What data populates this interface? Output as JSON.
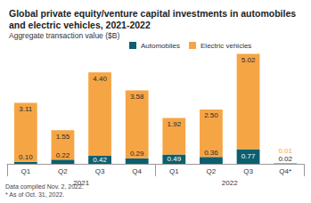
{
  "chart_data": {
    "type": "bar",
    "title": "Global private equity/venture capital investments in automobiles and electric vehicles, 2021-2022",
    "subtitle": "Aggregate transaction value ($B)",
    "categories": [
      "Q1",
      "Q2",
      "Q3",
      "Q4",
      "Q1",
      "Q2",
      "Q3",
      "Q4*"
    ],
    "category_groups": [
      "2021",
      "2022"
    ],
    "series": [
      {
        "name": "Automobiles",
        "color": "#0b5f6e",
        "values": [
          0.1,
          0.22,
          0.42,
          0.29,
          0.49,
          0.36,
          0.77,
          0.02
        ],
        "value_labels": [
          "0.10",
          "0.22",
          "0.42",
          "0.29",
          "0.49",
          "0.36",
          "0.77",
          "0.02"
        ]
      },
      {
        "name": "Electric vehicles",
        "color": "#f6a545",
        "values": [
          3.11,
          1.55,
          4.4,
          3.58,
          1.92,
          2.5,
          5.02,
          0.01
        ],
        "value_labels": [
          "3.11",
          "1.55",
          "4.40",
          "3.58",
          "1.92",
          "2.50",
          "5.02",
          "0.01"
        ]
      }
    ],
    "ylim": [
      0,
      6
    ],
    "yticks": [
      0,
      6
    ],
    "stacked": true,
    "data_labels": true,
    "tick_labels": "x",
    "grid": false,
    "legend": "top",
    "notes": [
      "Data compiled Nov. 2, 2022.",
      "* As of Oct. 31, 2022."
    ]
  }
}
